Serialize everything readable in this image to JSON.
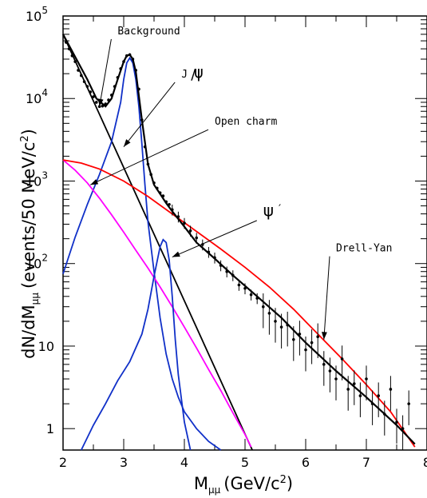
{
  "chart_data": {
    "type": "scatter",
    "title": "",
    "xlabel_main": "M",
    "xlabel_sub": "μμ",
    "xlabel_rest": "(GeV/c",
    "xlabel_sup": "2",
    "xlabel_close": ")",
    "ylabel_pre": "dN/dM",
    "ylabel_sub": "μμ",
    "ylabel_rest": "(events/50 MeV/c",
    "ylabel_sup": "2",
    "ylabel_close": ")",
    "xlim": [
      2,
      8
    ],
    "ylim": [
      0.55,
      100000
    ],
    "yscale": "log",
    "x_ticks": [
      {
        "value": 2,
        "label": "2"
      },
      {
        "value": 3,
        "label": "3"
      },
      {
        "value": 4,
        "label": "4"
      },
      {
        "value": 5,
        "label": "5"
      },
      {
        "value": 6,
        "label": "6"
      },
      {
        "value": 7,
        "label": "7"
      },
      {
        "value": 8,
        "label": "8"
      }
    ],
    "y_ticks": [
      {
        "value": 1,
        "label": "1"
      },
      {
        "value": 10,
        "label": "10"
      },
      {
        "value": 100,
        "label": "10",
        "sup": "2"
      },
      {
        "value": 1000,
        "label": "10",
        "sup": "3"
      },
      {
        "value": 10000,
        "label": "10",
        "sup": "4"
      },
      {
        "value": 100000,
        "label": "10",
        "sup": "5"
      }
    ],
    "series": [
      {
        "name": "Background",
        "color": "#000000",
        "kind": "line",
        "x": [
          2.0,
          5.12
        ],
        "y": [
          60000,
          0.55
        ]
      },
      {
        "name": "J/ψ",
        "color": "#1030c8",
        "kind": "line",
        "x": [
          2.0,
          2.2,
          2.4,
          2.6,
          2.8,
          2.95,
          3.0,
          3.05,
          3.1,
          3.15,
          3.2,
          3.25,
          3.3,
          3.35,
          3.4,
          3.5,
          3.6,
          3.7,
          3.8,
          3.9,
          4.0,
          4.2,
          4.4,
          4.6
        ],
        "y": [
          75,
          210,
          520,
          1200,
          3000,
          9000,
          17000,
          27000,
          31000,
          27000,
          17000,
          8000,
          2800,
          900,
          320,
          80,
          22,
          8,
          4,
          2.4,
          1.6,
          1.0,
          0.7,
          0.55
        ]
      },
      {
        "name": "Open charm",
        "color": "#ff00ff",
        "kind": "line",
        "x": [
          2.0,
          2.2,
          2.4,
          2.6,
          2.8,
          3.0,
          3.2,
          3.4,
          3.6,
          3.8,
          4.0,
          4.2,
          4.4,
          4.6,
          4.8,
          5.0,
          5.1
        ],
        "y": [
          1800,
          1350,
          950,
          620,
          390,
          240,
          145,
          88,
          52,
          30,
          17,
          9.5,
          5.2,
          2.9,
          1.55,
          0.85,
          0.6
        ]
      },
      {
        "name": "ψ′",
        "color": "#1030c8",
        "kind": "line",
        "x": [
          2.3,
          2.5,
          2.7,
          2.9,
          3.1,
          3.3,
          3.4,
          3.5,
          3.6,
          3.65,
          3.7,
          3.75,
          3.8,
          3.85,
          3.9,
          4.0,
          4.1
        ],
        "y": [
          0.55,
          1.1,
          2.0,
          3.8,
          6.5,
          14,
          28,
          70,
          160,
          195,
          180,
          110,
          40,
          12,
          4.5,
          1.2,
          0.55
        ]
      },
      {
        "name": "Drell-Yan",
        "color": "#ff0000",
        "kind": "line",
        "x": [
          2.0,
          2.3,
          2.6,
          3.0,
          3.4,
          3.8,
          4.2,
          4.6,
          5.0,
          5.4,
          5.8,
          6.2,
          6.6,
          7.0,
          7.4,
          7.8
        ],
        "y": [
          1800,
          1650,
          1400,
          1000,
          650,
          400,
          245,
          150,
          90,
          52,
          28,
          14,
          7,
          3.4,
          1.6,
          0.6
        ]
      },
      {
        "name": "Data fit",
        "color": "#000000",
        "kind": "line",
        "x": [
          2.0,
          2.2,
          2.4,
          2.55,
          2.7,
          2.8,
          2.9,
          3.0,
          3.05,
          3.1,
          3.15,
          3.2,
          3.3,
          3.4,
          3.5,
          3.6,
          3.7,
          3.8,
          4.0,
          4.2,
          4.5,
          4.8,
          5.2,
          5.6,
          6.0,
          6.5,
          7.0,
          7.5,
          7.8
        ],
        "y": [
          60000,
          32000,
          17000,
          10000,
          8000,
          10000,
          17000,
          28000,
          33000,
          34000,
          30000,
          21000,
          5500,
          1600,
          900,
          700,
          540,
          430,
          280,
          180,
          115,
          72,
          40,
          22,
          11,
          5,
          2.4,
          1.1,
          0.65
        ]
      },
      {
        "name": "data",
        "color": "#000000",
        "kind": "points",
        "x": [
          2.05,
          2.1,
          2.15,
          2.2,
          2.25,
          2.3,
          2.35,
          2.4,
          2.45,
          2.5,
          2.55,
          2.6,
          2.65,
          2.7,
          2.75,
          2.8,
          2.85,
          2.9,
          2.95,
          3.0,
          3.05,
          3.1,
          3.15,
          3.2,
          3.25,
          3.3,
          3.35,
          3.4,
          3.45,
          3.5,
          3.55,
          3.6,
          3.65,
          3.7,
          3.75,
          3.8,
          3.9,
          4.0,
          4.1,
          4.2,
          4.3,
          4.4,
          4.5,
          4.6,
          4.7,
          4.8,
          4.9,
          5.0,
          5.1,
          5.2,
          5.3,
          5.4,
          5.5,
          5.6,
          5.7,
          5.8,
          5.9,
          6.0,
          6.1,
          6.2,
          6.3,
          6.4,
          6.5,
          6.6,
          6.7,
          6.8,
          6.9,
          7.0,
          7.1,
          7.2,
          7.3,
          7.4,
          7.5,
          7.6,
          7.7
        ],
        "y": [
          48000,
          40000,
          33000,
          28000,
          22000,
          19000,
          16000,
          14000,
          12000,
          10500,
          9000,
          8000,
          8100,
          8600,
          9600,
          11000,
          14000,
          18000,
          23000,
          28000,
          33000,
          34000,
          30000,
          22000,
          13000,
          5500,
          2600,
          1600,
          1200,
          950,
          820,
          720,
          660,
          560,
          520,
          450,
          370,
          310,
          250,
          205,
          170,
          138,
          118,
          95,
          80,
          72,
          55,
          50,
          42,
          38,
          30,
          25,
          20,
          17,
          18,
          12,
          14,
          9,
          11,
          13,
          6,
          5,
          4,
          7,
          3,
          3.5,
          2.5,
          4,
          2,
          2.5,
          1.5,
          3,
          1.2,
          1.0,
          2
        ]
      }
    ],
    "annotations": [
      {
        "text": "Background",
        "font": "mono",
        "at": [
          2.9,
          60000
        ],
        "arrow_to": [
          2.6,
          8000
        ]
      },
      {
        "text": "J ",
        "font": "mono",
        "greek": "ψ",
        "slash": "/",
        "at": [
          3.95,
          18000
        ],
        "arrow_to": [
          3.0,
          2600
        ]
      },
      {
        "text": "Open charm",
        "font": "mono",
        "at": [
          4.5,
          4800
        ],
        "arrow_to": [
          2.45,
          900
        ]
      },
      {
        "text": "ψ",
        "prime": "′",
        "font": "sans",
        "at": [
          5.3,
          380
        ],
        "arrow_to": [
          3.8,
          120
        ]
      },
      {
        "text": "Drell-Yan",
        "font": "mono",
        "at": [
          6.5,
          140
        ],
        "arrow_to": [
          6.3,
          12
        ]
      }
    ]
  }
}
